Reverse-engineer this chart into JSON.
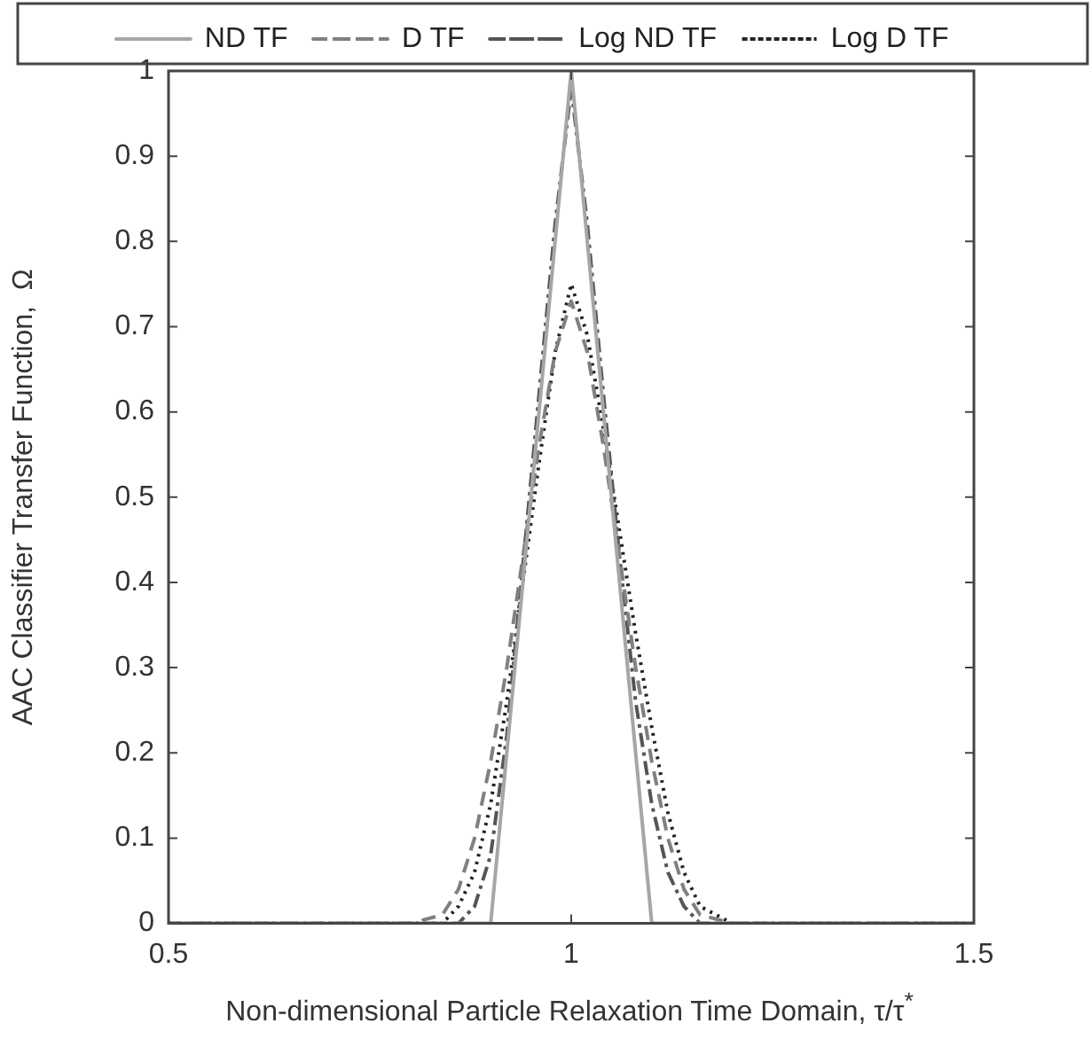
{
  "chart_data": {
    "type": "line",
    "xlabel": "Non-dimensional Particle Relaxation Time Domain,   τ/τ$^{*}$",
    "ylabel": "AAC Classifier Transfer Function,  Ω",
    "xlim": [
      0.5,
      1.5
    ],
    "xticks": [
      0.5,
      1,
      1.5
    ],
    "ylim": [
      0,
      1
    ],
    "yticks": [
      0,
      0.1,
      0.2,
      0.3,
      0.4,
      0.5,
      0.6,
      0.7,
      0.8,
      0.9,
      1
    ],
    "grid": false,
    "legend": "top",
    "marker": "none",
    "x": [
      0.5,
      0.8,
      0.84,
      0.86,
      0.88,
      0.9,
      0.92,
      0.94,
      0.96,
      0.98,
      1,
      1.02,
      1.04,
      1.06,
      1.08,
      1.1,
      1.12,
      1.14,
      1.16,
      1.2,
      1.5
    ],
    "series": [
      {
        "name": "ND TF",
        "color": "#a6a6a6",
        "line_style": "solid",
        "x": [
          0.5,
          0.9,
          1,
          1.1,
          1.5
        ],
        "values": [
          0,
          0,
          1,
          0,
          0
        ]
      },
      {
        "name": "D TF",
        "color": "#808080",
        "line_style": "dashed",
        "values": [
          0,
          0,
          0.01,
          0.04,
          0.1,
          0.19,
          0.3,
          0.43,
          0.56,
          0.67,
          0.73,
          0.67,
          0.56,
          0.43,
          0.3,
          0.19,
          0.1,
          0.04,
          0.01,
          0,
          0
        ]
      },
      {
        "name": "Log ND TF",
        "color": "#555555",
        "line_style": "dashdot",
        "values": [
          0,
          0,
          0,
          0,
          0.02,
          0.08,
          0.22,
          0.42,
          0.62,
          0.82,
          0.98,
          0.82,
          0.62,
          0.43,
          0.26,
          0.14,
          0.06,
          0.02,
          0,
          0,
          0
        ]
      },
      {
        "name": "Log D TF",
        "color": "#222222",
        "line_style": "dotted",
        "values": [
          0,
          0,
          0,
          0.02,
          0.06,
          0.14,
          0.26,
          0.4,
          0.54,
          0.67,
          0.75,
          0.69,
          0.58,
          0.46,
          0.34,
          0.23,
          0.13,
          0.06,
          0.02,
          0,
          0
        ]
      }
    ]
  }
}
